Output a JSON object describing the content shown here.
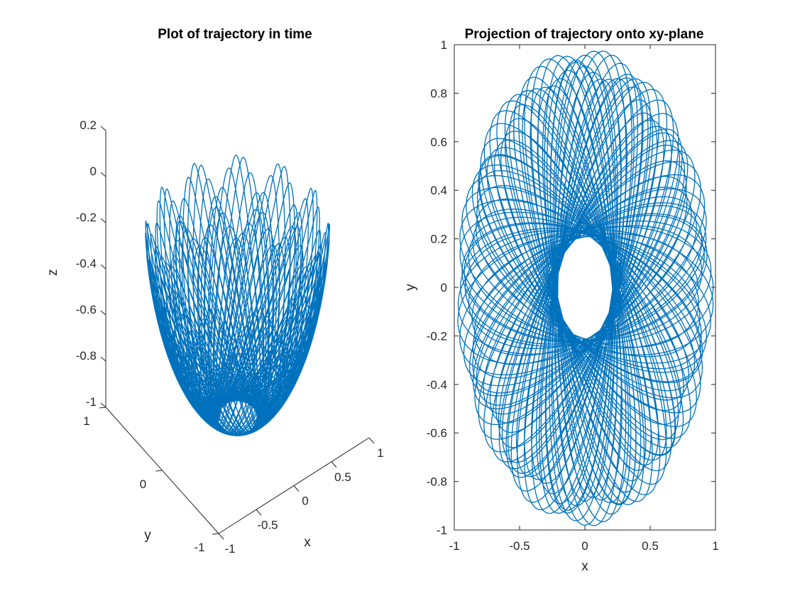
{
  "chart_data": [
    {
      "type": "line",
      "projection": "3d",
      "title": "Plot of trajectory in time",
      "xlabel": "x",
      "ylabel": "y",
      "zlabel": "z",
      "xlim": [
        -1,
        1
      ],
      "ylim": [
        -1,
        1
      ],
      "zlim": [
        -1,
        0.2
      ],
      "xticks": [
        "-1",
        "-0.5",
        "0",
        "0.5",
        "1"
      ],
      "yticks": [
        "-1",
        "0",
        "1"
      ],
      "zticks": [
        "-1",
        "-0.8",
        "-0.6",
        "-0.4",
        "-0.2",
        "0",
        "0.2"
      ],
      "grid": false,
      "series": [
        {
          "color": "#0072BD",
          "curve": "spherical pendulum trajectory, radius 1, rosette of precessing loops"
        }
      ]
    },
    {
      "type": "line",
      "title": "Projection of trajectory onto xy-plane",
      "xlabel": "x",
      "ylabel": "y",
      "xlim": [
        -1,
        1
      ],
      "ylim": [
        -1,
        1
      ],
      "xticks": [
        "-1",
        "-0.5",
        "0",
        "0.5",
        "1"
      ],
      "yticks": [
        "-1",
        "-0.8",
        "-0.6",
        "-0.4",
        "-0.2",
        "0",
        "0.2",
        "0.4",
        "0.6",
        "0.8",
        "1"
      ],
      "grid": false,
      "series": [
        {
          "color": "#0072BD",
          "curve": "projection of the same trajectory onto the xy-plane"
        }
      ]
    }
  ]
}
